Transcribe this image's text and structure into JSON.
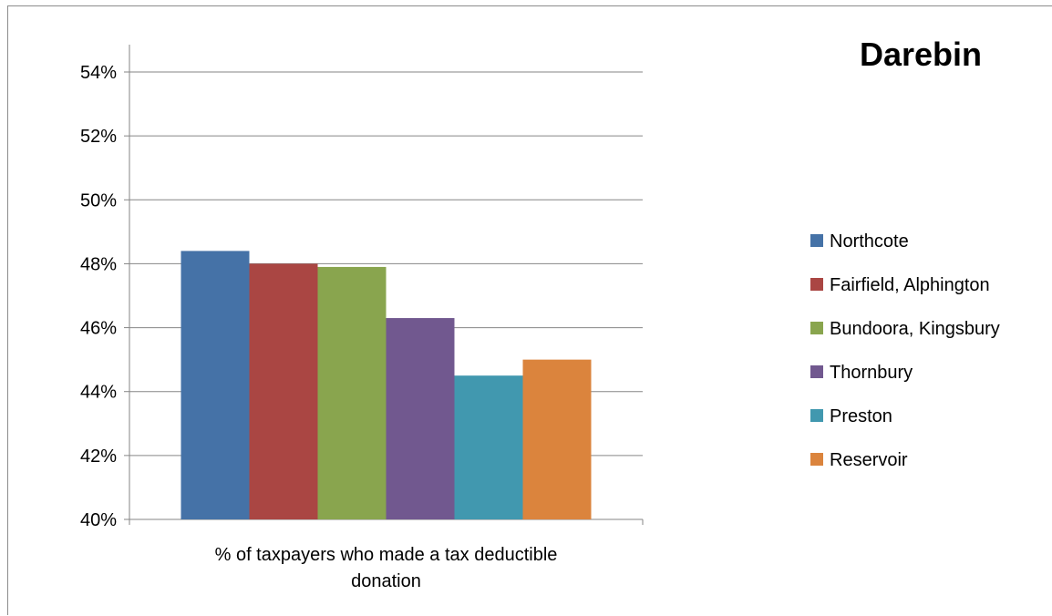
{
  "chart_data": {
    "type": "bar",
    "title": "Darebin",
    "categories": [
      "% of taxpayers who made a tax deductible donation"
    ],
    "category_label_lines": [
      "% of taxpayers who made a tax deductible",
      "donation"
    ],
    "series": [
      {
        "name": "Northcote",
        "values": [
          48.4
        ],
        "color": "#4572A7"
      },
      {
        "name": "Fairfield, Alphington",
        "values": [
          48.0
        ],
        "color": "#AA4643"
      },
      {
        "name": "Bundoora, Kingsbury",
        "values": [
          47.9
        ],
        "color": "#89A54E"
      },
      {
        "name": "Thornbury",
        "values": [
          46.3
        ],
        "color": "#71588F"
      },
      {
        "name": "Preston",
        "values": [
          44.5
        ],
        "color": "#4198AF"
      },
      {
        "name": "Reservoir",
        "values": [
          45.0
        ],
        "color": "#DB843D"
      }
    ],
    "ylim": [
      40,
      54
    ],
    "yticks": [
      40,
      42,
      44,
      46,
      48,
      50,
      52,
      54
    ],
    "ytick_labels": [
      "40%",
      "42%",
      "44%",
      "46%",
      "48%",
      "50%",
      "52%",
      "54%"
    ],
    "xlabel": "",
    "ylabel": "",
    "grid": true,
    "legend_position": "right"
  }
}
